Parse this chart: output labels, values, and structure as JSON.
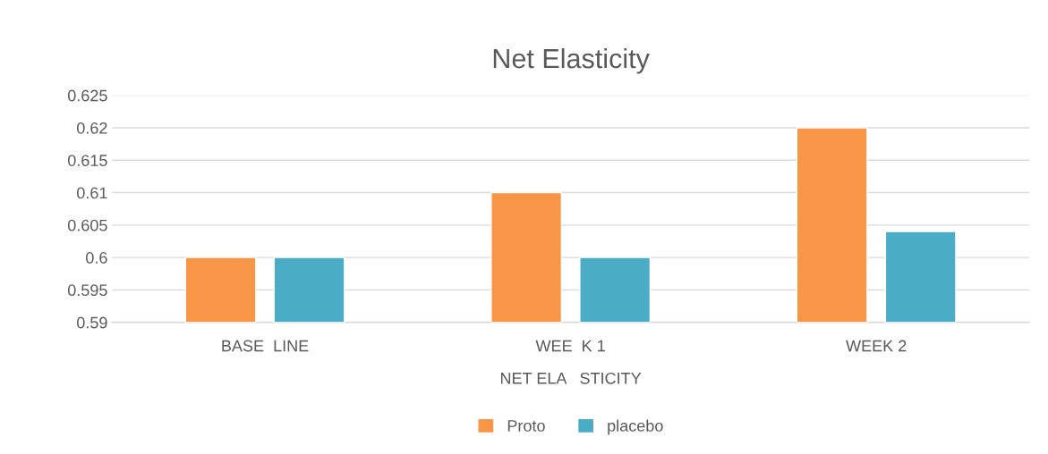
{
  "chart_data": {
    "type": "bar",
    "title": "Net Elasticity",
    "xlabel": "NET ELA   STICITY",
    "categories": [
      "BASE  LINE",
      "WEE  K 1",
      "WEEK 2"
    ],
    "series": [
      {
        "name": "Proto",
        "color": "#f79646",
        "values": [
          0.6,
          0.61,
          0.62
        ]
      },
      {
        "name": "placebo",
        "color": "#4bacc6",
        "values": [
          0.6,
          0.6,
          0.604
        ]
      }
    ],
    "ylim": [
      0.59,
      0.625
    ],
    "yticks": [
      0.59,
      0.595,
      0.6,
      0.605,
      0.61,
      0.615,
      0.62,
      0.625
    ],
    "grid": "y",
    "legend": "bottom"
  }
}
